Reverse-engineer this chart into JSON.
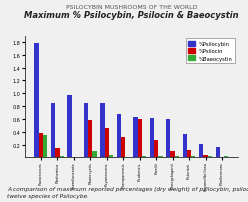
{
  "title": "PSILOCYBIN MUSHROOMS OF THE WORLD",
  "subtitle": "Maximum % Psilocybin, Psilocin & Baeocystin",
  "caption": "A comparison of maximum reported percentages (dry weight) of psilocybin, psilocin, and baeocystin in\ntwelve species of Psilocybe.",
  "categories": [
    "P.azurescens",
    "P.bohemica",
    "P.semilanceata",
    "P.baeocystis",
    "P.cyanescens",
    "P.tampanensis",
    "P.cubensis",
    "P.weilii",
    "P.hoogshagenii",
    "P.stuntzii",
    "P.cyanofibrillosa",
    "P.liniformans"
  ],
  "psilocybin": [
    1.78,
    0.85,
    0.98,
    0.85,
    0.85,
    0.68,
    0.63,
    0.61,
    0.6,
    0.36,
    0.21,
    0.16
  ],
  "psilocin": [
    0.38,
    0.15,
    0.0,
    0.59,
    0.45,
    0.32,
    0.6,
    0.27,
    0.1,
    0.12,
    0.04,
    0.0
  ],
  "baeocystin": [
    0.35,
    0.02,
    0.0,
    0.1,
    0.03,
    0.0,
    0.02,
    0.02,
    0.02,
    0.02,
    0.02,
    0.02
  ],
  "colors": {
    "psilocybin": "#3333cc",
    "psilocin": "#cc0000",
    "baeocystin": "#33aa33"
  },
  "legend_labels": [
    "%Psilocybin",
    "%Psilocin",
    "%Baeocystin"
  ],
  "ylim": [
    0,
    1.9
  ],
  "yticks": [
    0.2,
    0.4,
    0.6,
    0.8,
    1.0,
    1.2,
    1.4,
    1.6,
    1.8
  ],
  "background_color": "#f0f0f0",
  "title_fontsize": 4.5,
  "subtitle_fontsize": 6,
  "caption_fontsize": 4.2
}
